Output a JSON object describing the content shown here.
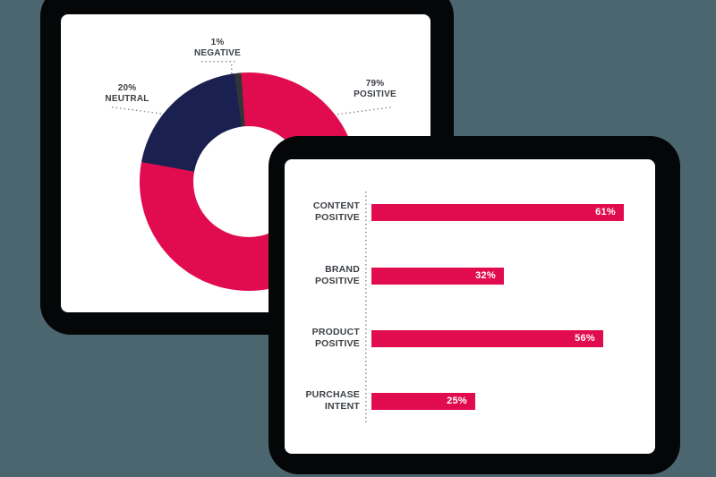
{
  "colors": {
    "background": "#4C6670",
    "card_shadow": "#050608",
    "card_background": "#ffffff",
    "accent_pink": "#E10C4F",
    "navy": "#1A2050",
    "dark_slice": "#31353A",
    "label_text": "#3C4045",
    "dotted_line": "#8d9296",
    "bar_value_text": "#ffffff"
  },
  "donut": {
    "labels": [
      {
        "pct": "1%",
        "name": "NEGATIVE"
      },
      {
        "pct": "20%",
        "name": "NEUTRAL"
      },
      {
        "pct": "79%",
        "name": "POSITIVE"
      }
    ]
  },
  "bars": {
    "rows": [
      {
        "line1": "CONTENT",
        "line2": "POSITIVE",
        "value": 61,
        "display": "61%"
      },
      {
        "line1": "BRAND",
        "line2": "POSITIVE",
        "value": 32,
        "display": "32%"
      },
      {
        "line1": "PRODUCT",
        "line2": "POSITIVE",
        "value": 56,
        "display": "56%"
      },
      {
        "line1": "PURCHASE",
        "line2": "INTENT",
        "value": 25,
        "display": "25%"
      }
    ]
  },
  "chart_data": [
    {
      "type": "pie",
      "style": "donut",
      "slices": [
        {
          "label": "POSITIVE",
          "value": 79,
          "color": "#E10C4F"
        },
        {
          "label": "NEUTRAL",
          "value": 20,
          "color": "#1A2050"
        },
        {
          "label": "NEGATIVE",
          "value": 1,
          "color": "#31353A"
        }
      ],
      "start_angle_deg": -4,
      "direction": "clockwise",
      "legend_position": "callout-labels-with-dotted-leaders",
      "title": ""
    },
    {
      "type": "bar",
      "orientation": "horizontal",
      "categories": [
        "CONTENT POSITIVE",
        "BRAND POSITIVE",
        "PRODUCT POSITIVE",
        "PURCHASE INTENT"
      ],
      "values": [
        61,
        32,
        56,
        25
      ],
      "value_labels": [
        "61%",
        "32%",
        "56%",
        "25%"
      ],
      "xlim": [
        0,
        100
      ],
      "bar_color": "#E10C4F",
      "grid": "off",
      "axis_style": "dotted-vertical-baseline",
      "title": ""
    }
  ]
}
